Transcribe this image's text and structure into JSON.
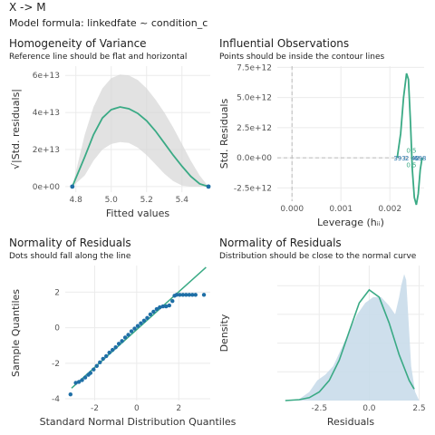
{
  "header": {
    "title": "X -> M",
    "formula": "Model formula: linkedfate ~ condition_c"
  },
  "colors": {
    "line": "#3aaa85",
    "point": "#1f6fa6",
    "band": "#d6d6d6",
    "density_fill": "#c9dbea",
    "grid": "#ebebeb",
    "refline": "#bbbbbb"
  },
  "chart_data": [
    {
      "id": "homogeneity",
      "type": "scatter",
      "title": "Homogeneity of Variance",
      "subtitle": "Reference line should be flat and horizontal",
      "xlabel": "Fitted values",
      "ylabel": "√|Std. residuals|",
      "xlim": [
        4.74,
        5.56
      ],
      "ylim": [
        -3000000000000.0,
        65000000000000.0
      ],
      "xticks": [
        4.8,
        5.0,
        5.2,
        5.4
      ],
      "xtick_labels": [
        "4.8",
        "5.0",
        "5.2",
        "5.4"
      ],
      "yticks": [
        0,
        20000000000000.0,
        40000000000000.0,
        60000000000000.0
      ],
      "ytick_labels": [
        "0e+00",
        "2e+13",
        "4e+13",
        "6e+13"
      ],
      "points": [
        [
          4.78,
          0
        ],
        [
          5.55,
          0
        ]
      ],
      "smooth": {
        "x": [
          4.78,
          4.85,
          4.9,
          4.95,
          5.0,
          5.05,
          5.1,
          5.15,
          5.2,
          5.25,
          5.3,
          5.35,
          5.4,
          5.45,
          5.5,
          5.55
        ],
        "y": [
          0,
          16000000000000.0,
          28000000000000.0,
          37000000000000.0,
          41500000000000.0,
          43000000000000.0,
          42000000000000.0,
          39500000000000.0,
          35500000000000.0,
          30000000000000.0,
          23500000000000.0,
          17000000000000.0,
          11000000000000.0,
          5500000000000.0,
          1500000000000.0,
          0
        ],
        "lower": [
          0,
          6000000000000.0,
          14000000000000.0,
          20000000000000.0,
          23000000000000.0,
          24000000000000.0,
          23500000000000.0,
          21000000000000.0,
          17000000000000.0,
          12000000000000.0,
          7000000000000.0,
          3000000000000.0,
          500000000000.0,
          0,
          0,
          0
        ],
        "upper": [
          0,
          28000000000000.0,
          43000000000000.0,
          53000000000000.0,
          58500000000000.0,
          60500000000000.0,
          60000000000000.0,
          57500000000000.0,
          53000000000000.0,
          47000000000000.0,
          40000000000000.0,
          32000000000000.0,
          23000000000000.0,
          14000000000000.0,
          6000000000000.0,
          0
        ]
      }
    },
    {
      "id": "influential",
      "type": "line",
      "title": "Influential Observations",
      "subtitle": "Points should be inside the contour lines",
      "xlabel": "Leverage (hᵢᵢ)",
      "ylabel": "Std. Residuals",
      "xlim": [
        -0.0003,
        0.0027
      ],
      "ylim": [
        -3600000000000.0,
        7600000000000.0
      ],
      "xticks": [
        0,
        0.001,
        0.002
      ],
      "xtick_labels": [
        "0.000",
        "0.001",
        "0.002"
      ],
      "yticks": [
        -2500000000000.0,
        0,
        2500000000000.0,
        5000000000000.0,
        7500000000000.0
      ],
      "ytick_labels": [
        "-2.5e+12",
        "0.0e+00",
        "2.5e+12",
        "5.0e+12",
        "7.5e+12"
      ],
      "curve": {
        "x": [
          0.00215,
          0.00222,
          0.00228,
          0.00234,
          0.00238,
          0.00242,
          0.00246,
          0.0025,
          0.00254,
          0.00258,
          0.00262,
          0.00266
        ],
        "y": [
          0,
          2000000000000.0,
          5000000000000.0,
          7000000000000.0,
          6500000000000.0,
          3000000000000.0,
          -1000000000000.0,
          -3300000000000.0,
          -3900000000000.0,
          -3000000000000.0,
          -1000000000000.0,
          0
        ]
      },
      "point_labels": [
        {
          "x": 0.0022,
          "y": 0,
          "text": "393"
        },
        {
          "x": 0.00235,
          "y": 0,
          "text": "2"
        },
        {
          "x": 0.00252,
          "y": 0,
          "text": "40"
        },
        {
          "x": 0.00262,
          "y": 0,
          "text": "698"
        }
      ],
      "contour_labels": [
        {
          "x": 0.00244,
          "y": 650000000000.0,
          "text": "0.5"
        },
        {
          "x": 0.00244,
          "y": -550000000000.0,
          "text": "0.5"
        }
      ]
    },
    {
      "id": "qq",
      "type": "scatter",
      "title": "Normality of Residuals",
      "subtitle": "Dots should fall along the line",
      "xlabel": "Standard Normal Distribution Quantiles",
      "ylabel": "Sample Quantiles",
      "xlim": [
        -3.4,
        3.5
      ],
      "ylim": [
        -4.1,
        3.5
      ],
      "xticks": [
        -2,
        0,
        2
      ],
      "xtick_labels": [
        "-2",
        "0",
        "2"
      ],
      "yticks": [
        -4,
        -2,
        0,
        2
      ],
      "ytick_labels": [
        "-4",
        "-2",
        "0",
        "2"
      ],
      "reference_line": {
        "x": [
          -3.1,
          3.3
        ],
        "y": [
          -3.4,
          3.4
        ]
      },
      "points": [
        [
          -3.15,
          -3.75
        ],
        [
          -2.9,
          -3.1
        ],
        [
          -2.75,
          -3.05
        ],
        [
          -2.6,
          -2.95
        ],
        [
          -2.45,
          -2.8
        ],
        [
          -2.3,
          -2.65
        ],
        [
          -2.2,
          -2.55
        ],
        [
          -2.05,
          -2.35
        ],
        [
          -1.9,
          -2.15
        ],
        [
          -1.75,
          -1.95
        ],
        [
          -1.6,
          -1.75
        ],
        [
          -1.45,
          -1.6
        ],
        [
          -1.3,
          -1.4
        ],
        [
          -1.15,
          -1.25
        ],
        [
          -1.0,
          -1.1
        ],
        [
          -0.85,
          -0.9
        ],
        [
          -0.7,
          -0.75
        ],
        [
          -0.55,
          -0.55
        ],
        [
          -0.4,
          -0.4
        ],
        [
          -0.25,
          -0.2
        ],
        [
          -0.1,
          -0.05
        ],
        [
          0.05,
          0.1
        ],
        [
          0.2,
          0.25
        ],
        [
          0.35,
          0.4
        ],
        [
          0.5,
          0.55
        ],
        [
          0.65,
          0.75
        ],
        [
          0.8,
          0.9
        ],
        [
          0.95,
          1.05
        ],
        [
          1.1,
          1.15
        ],
        [
          1.25,
          1.2
        ],
        [
          1.4,
          1.2
        ],
        [
          1.55,
          1.25
        ],
        [
          1.7,
          1.5
        ],
        [
          1.8,
          1.8
        ],
        [
          1.9,
          1.85
        ],
        [
          2.05,
          1.85
        ],
        [
          2.2,
          1.85
        ],
        [
          2.35,
          1.85
        ],
        [
          2.5,
          1.85
        ],
        [
          2.65,
          1.85
        ],
        [
          2.8,
          1.85
        ],
        [
          3.2,
          1.85
        ]
      ]
    },
    {
      "id": "density",
      "type": "area",
      "title": "Normality of Residuals",
      "subtitle": "Distribution should be close to the normal curve",
      "xlabel": "Residuals",
      "ylabel": "Density",
      "xlim": [
        -4.6,
        2.75
      ],
      "ylim": [
        0,
        0.47
      ],
      "xticks": [
        -2.5,
        0,
        2.5
      ],
      "xtick_labels": [
        "-2.5",
        "0.0",
        "2.5"
      ],
      "empirical": {
        "x": [
          -4.0,
          -3.5,
          -3.0,
          -2.6,
          -2.2,
          -1.8,
          -1.4,
          -1.0,
          -0.6,
          -0.2,
          0.2,
          0.6,
          1.0,
          1.3,
          1.5,
          1.6,
          1.75,
          1.85,
          1.95,
          2.1,
          2.3,
          2.5
        ],
        "y": [
          0.0,
          0.005,
          0.03,
          0.07,
          0.09,
          0.12,
          0.18,
          0.24,
          0.3,
          0.34,
          0.36,
          0.36,
          0.33,
          0.3,
          0.36,
          0.4,
          0.44,
          0.42,
          0.3,
          0.12,
          0.03,
          0.0
        ]
      },
      "normal": {
        "x": [
          -4.2,
          -3.5,
          -3.0,
          -2.5,
          -2.0,
          -1.5,
          -1.0,
          -0.5,
          0.0,
          0.5,
          1.0,
          1.5,
          2.0,
          2.25
        ],
        "y": [
          0.0,
          0.003,
          0.01,
          0.03,
          0.07,
          0.14,
          0.24,
          0.34,
          0.385,
          0.36,
          0.27,
          0.16,
          0.07,
          0.04
        ]
      }
    }
  ]
}
